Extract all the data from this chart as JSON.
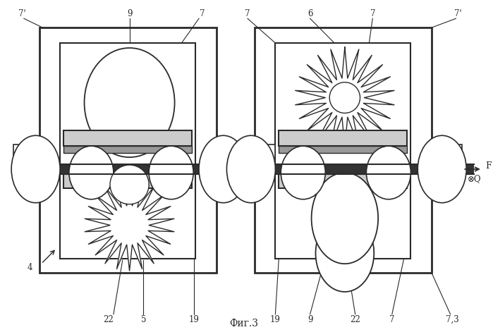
{
  "bg_color": "#ffffff",
  "line_color": "#2a2a2a",
  "title": "Фиг.3",
  "fig_w": 6.99,
  "fig_h": 4.71,
  "dpi": 100
}
